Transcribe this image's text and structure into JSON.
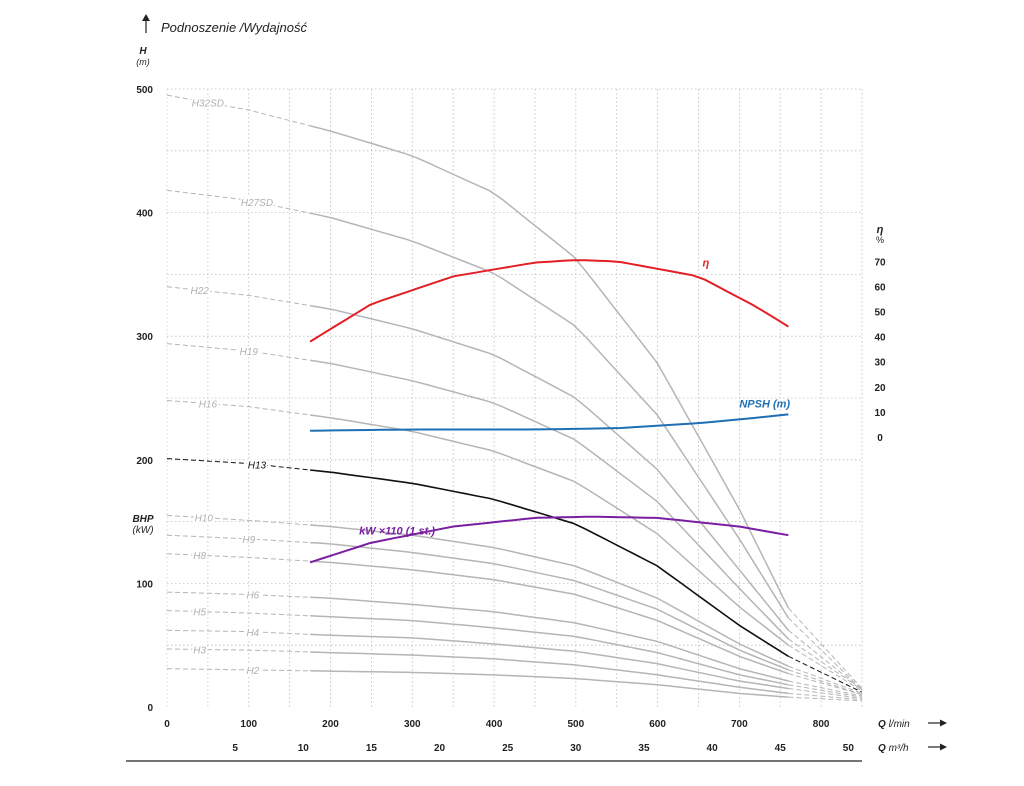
{
  "chart_data": {
    "type": "line",
    "title": "Podnoszenie /Wydajność",
    "y_axis": {
      "label": "H",
      "unit": "(m)",
      "ylim": [
        0,
        500
      ],
      "ticks": [
        0,
        100,
        200,
        300,
        400,
        500
      ]
    },
    "x_axis": {
      "label": "Q",
      "unit": "l/min",
      "xlim": [
        0,
        850
      ],
      "ticks": [
        0,
        100,
        200,
        300,
        400,
        500,
        600,
        700,
        800
      ]
    },
    "x_axis2": {
      "label": "Q",
      "unit": "m³/h",
      "ticks": [
        5,
        10,
        15,
        20,
        25,
        30,
        35,
        40,
        45,
        50
      ]
    },
    "eta_axis": {
      "label": "η",
      "unit": "%",
      "ticks": [
        0,
        10,
        20,
        30,
        40,
        50,
        60,
        70
      ]
    },
    "bhp_axis": {
      "label": "BHP",
      "unit": "(kW)"
    },
    "grid": true,
    "h_curves": [
      {
        "name": "H32SD",
        "label_x": 50,
        "highlight": false,
        "points": [
          [
            0,
            495
          ],
          [
            100,
            483
          ],
          [
            200,
            466
          ],
          [
            300,
            446
          ],
          [
            400,
            416
          ],
          [
            500,
            363
          ],
          [
            600,
            278
          ],
          [
            700,
            160
          ],
          [
            760,
            80
          ],
          [
            850,
            15
          ]
        ]
      },
      {
        "name": "H27SD",
        "label_x": 110,
        "highlight": false,
        "points": [
          [
            0,
            418
          ],
          [
            100,
            410
          ],
          [
            200,
            396
          ],
          [
            300,
            377
          ],
          [
            400,
            351
          ],
          [
            500,
            308
          ],
          [
            600,
            236
          ],
          [
            700,
            136
          ],
          [
            760,
            72
          ],
          [
            850,
            14
          ]
        ]
      },
      {
        "name": "H22",
        "label_x": 40,
        "highlight": false,
        "points": [
          [
            0,
            340
          ],
          [
            100,
            333
          ],
          [
            200,
            322
          ],
          [
            300,
            306
          ],
          [
            400,
            285
          ],
          [
            500,
            250
          ],
          [
            600,
            192
          ],
          [
            700,
            111
          ],
          [
            760,
            62
          ],
          [
            850,
            14
          ]
        ]
      },
      {
        "name": "H19",
        "label_x": 100,
        "highlight": false,
        "points": [
          [
            0,
            294
          ],
          [
            100,
            288
          ],
          [
            200,
            278
          ],
          [
            300,
            264
          ],
          [
            400,
            246
          ],
          [
            500,
            216
          ],
          [
            600,
            166
          ],
          [
            700,
            96
          ],
          [
            760,
            55
          ],
          [
            850,
            14
          ]
        ]
      },
      {
        "name": "H16",
        "label_x": 50,
        "highlight": false,
        "points": [
          [
            0,
            248
          ],
          [
            100,
            243
          ],
          [
            200,
            234
          ],
          [
            300,
            223
          ],
          [
            400,
            207
          ],
          [
            500,
            182
          ],
          [
            600,
            140
          ],
          [
            700,
            81
          ],
          [
            760,
            50
          ],
          [
            850,
            13
          ]
        ]
      },
      {
        "name": "H13",
        "label_x": 110,
        "highlight": true,
        "points": [
          [
            0,
            201
          ],
          [
            100,
            197
          ],
          [
            200,
            190
          ],
          [
            300,
            181
          ],
          [
            400,
            168
          ],
          [
            500,
            148
          ],
          [
            600,
            114
          ],
          [
            700,
            66
          ],
          [
            760,
            41
          ],
          [
            850,
            12
          ]
        ]
      },
      {
        "name": "H10",
        "label_x": 45,
        "highlight": false,
        "points": [
          [
            0,
            155
          ],
          [
            100,
            151
          ],
          [
            200,
            146
          ],
          [
            300,
            139
          ],
          [
            400,
            129
          ],
          [
            500,
            114
          ],
          [
            600,
            88
          ],
          [
            700,
            51
          ],
          [
            760,
            33
          ],
          [
            850,
            11
          ]
        ]
      },
      {
        "name": "H9",
        "label_x": 100,
        "highlight": false,
        "points": [
          [
            0,
            139
          ],
          [
            100,
            136
          ],
          [
            200,
            132
          ],
          [
            300,
            125
          ],
          [
            400,
            116
          ],
          [
            500,
            102
          ],
          [
            600,
            79
          ],
          [
            700,
            46
          ],
          [
            760,
            30
          ],
          [
            850,
            10
          ]
        ]
      },
      {
        "name": "H8",
        "label_x": 40,
        "highlight": false,
        "points": [
          [
            0,
            124
          ],
          [
            100,
            121
          ],
          [
            200,
            117
          ],
          [
            300,
            111
          ],
          [
            400,
            103
          ],
          [
            500,
            91
          ],
          [
            600,
            70
          ],
          [
            700,
            41
          ],
          [
            760,
            27
          ],
          [
            850,
            10
          ]
        ]
      },
      {
        "name": "H6",
        "label_x": 105,
        "highlight": false,
        "points": [
          [
            0,
            93
          ],
          [
            100,
            91
          ],
          [
            200,
            88
          ],
          [
            300,
            83
          ],
          [
            400,
            77
          ],
          [
            500,
            68
          ],
          [
            600,
            53
          ],
          [
            700,
            31
          ],
          [
            760,
            21
          ],
          [
            850,
            9
          ]
        ]
      },
      {
        "name": "H5",
        "label_x": 40,
        "highlight": false,
        "points": [
          [
            0,
            78
          ],
          [
            100,
            76
          ],
          [
            200,
            73
          ],
          [
            300,
            70
          ],
          [
            400,
            64
          ],
          [
            500,
            57
          ],
          [
            600,
            44
          ],
          [
            700,
            26
          ],
          [
            760,
            18
          ],
          [
            850,
            8
          ]
        ]
      },
      {
        "name": "H4",
        "label_x": 105,
        "highlight": false,
        "points": [
          [
            0,
            62
          ],
          [
            100,
            61
          ],
          [
            200,
            58
          ],
          [
            300,
            56
          ],
          [
            400,
            51
          ],
          [
            500,
            45
          ],
          [
            600,
            35
          ],
          [
            700,
            21
          ],
          [
            760,
            15
          ],
          [
            850,
            7
          ]
        ]
      },
      {
        "name": "H3",
        "label_x": 40,
        "highlight": false,
        "points": [
          [
            0,
            47
          ],
          [
            100,
            46
          ],
          [
            200,
            44
          ],
          [
            300,
            42
          ],
          [
            400,
            39
          ],
          [
            500,
            34
          ],
          [
            600,
            26
          ],
          [
            700,
            16
          ],
          [
            760,
            11
          ],
          [
            850,
            6
          ]
        ]
      },
      {
        "name": "H2",
        "label_x": 105,
        "highlight": false,
        "points": [
          [
            0,
            31
          ],
          [
            100,
            30
          ],
          [
            200,
            29
          ],
          [
            300,
            28
          ],
          [
            400,
            26
          ],
          [
            500,
            23
          ],
          [
            600,
            18
          ],
          [
            700,
            11
          ],
          [
            760,
            8
          ],
          [
            850,
            5
          ]
        ]
      }
    ],
    "solid_range": [
      175,
      760
    ],
    "series": [
      {
        "name": "η",
        "color": "#e31e24",
        "axis": "eta",
        "label_x": 655,
        "points": [
          [
            175,
            38
          ],
          [
            250,
            53
          ],
          [
            350,
            64
          ],
          [
            450,
            69.5
          ],
          [
            500,
            70.5
          ],
          [
            550,
            70
          ],
          [
            650,
            64
          ],
          [
            720,
            52
          ],
          [
            760,
            44
          ]
        ]
      },
      {
        "name": "NPSH (m)",
        "color": "#1f6fb5",
        "axis": "eta",
        "label_x": 700,
        "points": [
          [
            175,
            2.5
          ],
          [
            300,
            3
          ],
          [
            450,
            3
          ],
          [
            550,
            3.5
          ],
          [
            650,
            5.5
          ],
          [
            700,
            7
          ],
          [
            760,
            9
          ]
        ]
      },
      {
        "name": "kW ×110 (1 st.)",
        "color": "#7b1fa2",
        "axis": "h",
        "label_x": 235,
        "points": [
          [
            175,
            117
          ],
          [
            250,
            133
          ],
          [
            350,
            146
          ],
          [
            450,
            153
          ],
          [
            520,
            154
          ],
          [
            600,
            153
          ],
          [
            700,
            146
          ],
          [
            760,
            139
          ]
        ]
      }
    ]
  }
}
